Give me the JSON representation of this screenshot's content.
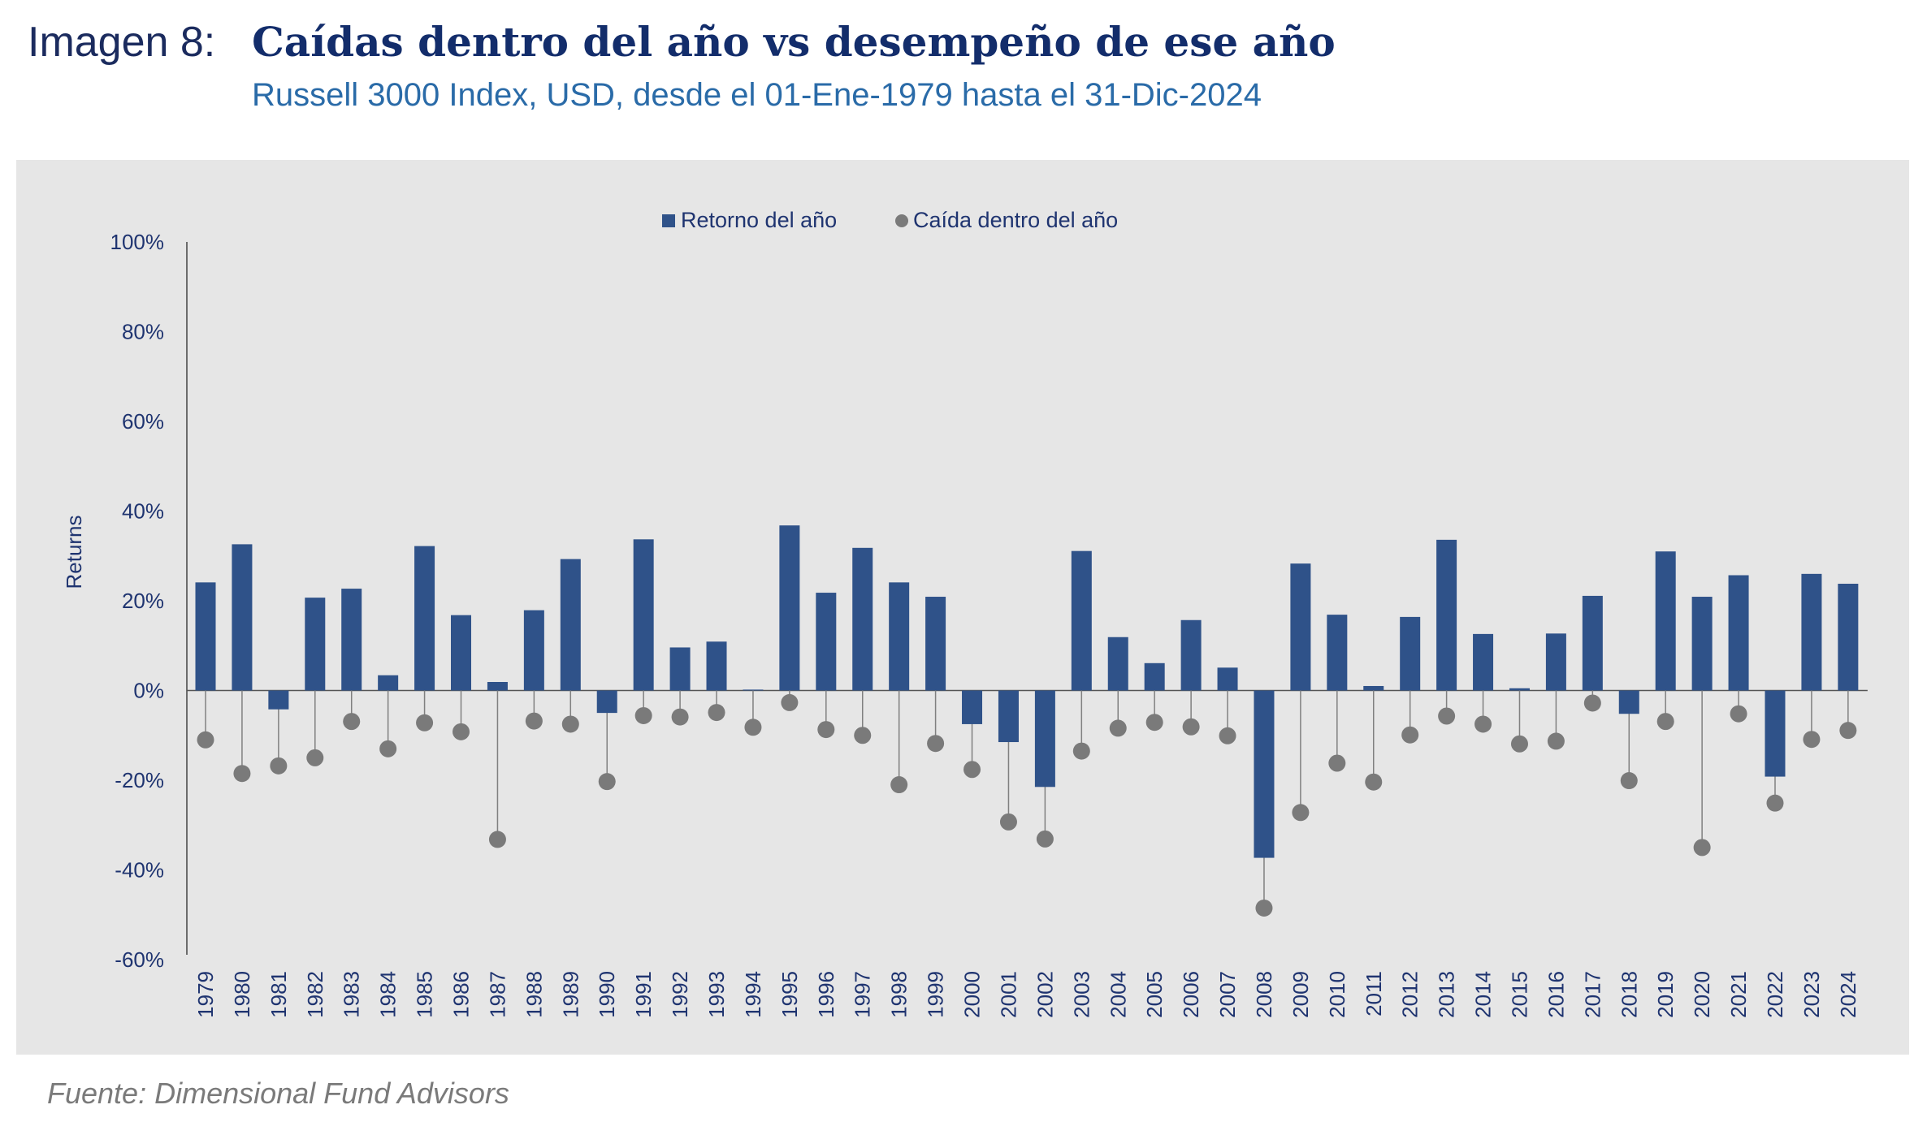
{
  "figure_label": "Imagen 8:",
  "title": "Caídas dentro del año vs desempeño de ese año",
  "subtitle": "Russell 3000 Index, USD, desde el 01-Ene-1979 hasta el 31-Dic-2024",
  "source": "Fuente: Dimensional Fund Advisors",
  "colors": {
    "bar": "#2f5289",
    "dot": "#7a7a7a",
    "axis_text": "#1f3470",
    "panel": "#e6e6e6"
  },
  "chart_data": {
    "type": "bar",
    "ylabel": "Returns",
    "xlabel": "",
    "ylim": [
      -60,
      100
    ],
    "yticks": [
      100,
      80,
      60,
      40,
      20,
      0,
      -20,
      -40,
      -60
    ],
    "ytick_labels": [
      "100%",
      "80%",
      "60%",
      "40%",
      "20%",
      "0%",
      "-20%",
      "-40%",
      "-60%"
    ],
    "legend_position": "top-center",
    "grid": false,
    "categories": [
      "1979",
      "1980",
      "1981",
      "1982",
      "1983",
      "1984",
      "1985",
      "1986",
      "1987",
      "1988",
      "1989",
      "1990",
      "1991",
      "1992",
      "1993",
      "1994",
      "1995",
      "1996",
      "1997",
      "1998",
      "1999",
      "2000",
      "2001",
      "2002",
      "2003",
      "2004",
      "2005",
      "2006",
      "2007",
      "2008",
      "2009",
      "2010",
      "2011",
      "2012",
      "2013",
      "2014",
      "2015",
      "2016",
      "2017",
      "2018",
      "2019",
      "2020",
      "2021",
      "2022",
      "2023",
      "2024"
    ],
    "series": [
      {
        "name": "Retorno del año",
        "kind": "bar",
        "values": [
          24.1,
          32.6,
          -4.2,
          20.7,
          22.7,
          3.4,
          32.2,
          16.8,
          1.9,
          17.9,
          29.3,
          -5.0,
          33.7,
          9.6,
          10.9,
          0.2,
          36.8,
          21.8,
          31.8,
          24.1,
          20.9,
          -7.5,
          -11.5,
          -21.5,
          31.1,
          11.9,
          6.1,
          15.7,
          5.1,
          -37.3,
          28.3,
          16.9,
          1.0,
          16.4,
          33.6,
          12.6,
          0.5,
          12.7,
          21.1,
          -5.2,
          31.0,
          20.9,
          25.7,
          -19.2,
          26.0,
          23.8
        ]
      },
      {
        "name": "Caída dentro del año",
        "kind": "dot",
        "values": [
          -11,
          -18.5,
          -16.8,
          -15,
          -6.9,
          -13,
          -7.2,
          -9.2,
          -33.2,
          -6.8,
          -7.5,
          -20.3,
          -5.6,
          -5.9,
          -4.9,
          -8.2,
          -2.7,
          -8.7,
          -10,
          -21,
          -11.8,
          -17.6,
          -29.3,
          -33.1,
          -13.5,
          -8.4,
          -7.1,
          -8.1,
          -10.1,
          -48.5,
          -27.2,
          -16.2,
          -20.4,
          -9.9,
          -5.7,
          -7.5,
          -11.9,
          -11.3,
          -2.8,
          -20.1,
          -6.9,
          -35,
          -5.2,
          -25.1,
          -10.9,
          -8.9
        ]
      }
    ]
  }
}
